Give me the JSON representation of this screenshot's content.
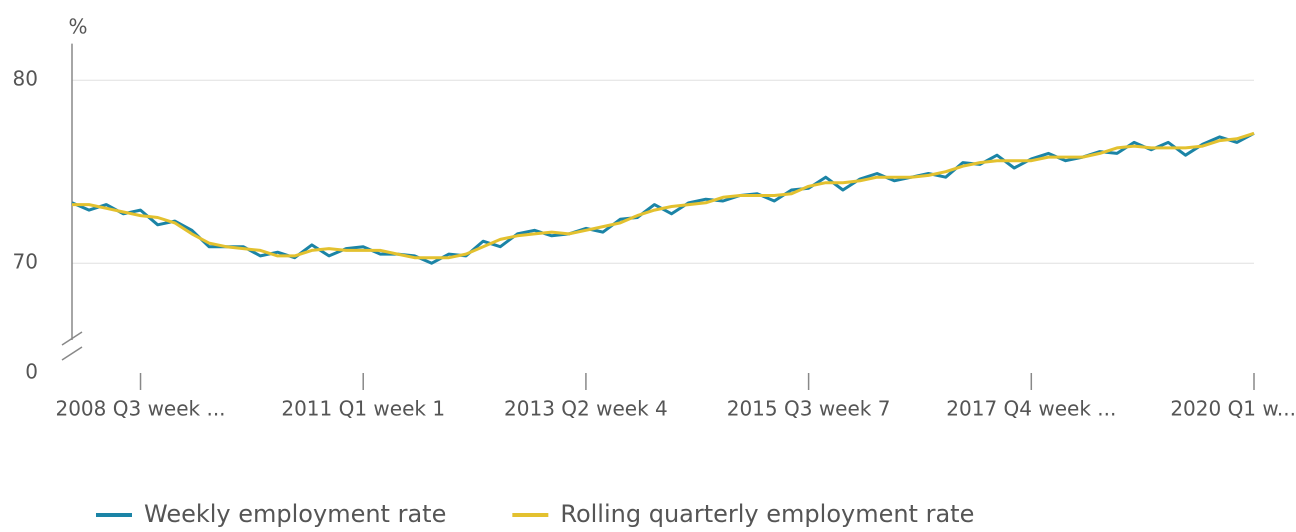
{
  "chart_data": {
    "type": "line",
    "y_unit": "%",
    "categories": [
      null,
      null,
      null,
      null,
      "2008 Q3 week ...",
      null,
      null,
      null,
      null,
      null,
      null,
      null,
      null,
      null,
      null,
      null,
      null,
      "2011 Q1 week 1",
      null,
      null,
      null,
      null,
      null,
      null,
      null,
      null,
      null,
      null,
      null,
      null,
      "2013 Q2 week 4",
      null,
      null,
      null,
      null,
      null,
      null,
      null,
      null,
      null,
      null,
      null,
      null,
      "2015 Q3 week 7",
      null,
      null,
      null,
      null,
      null,
      null,
      null,
      null,
      null,
      null,
      null,
      null,
      "2017 Q4 week ...",
      null,
      null,
      null,
      null,
      null,
      null,
      null,
      null,
      null,
      null,
      null,
      null,
      "2020 Q1 w..."
    ],
    "series": [
      {
        "name": "Weekly employment rate",
        "color": "#1b84a6",
        "values": [
          73.3,
          72.9,
          73.2,
          72.7,
          72.9,
          72.1,
          72.3,
          71.8,
          70.9,
          70.9,
          70.9,
          70.4,
          70.6,
          70.3,
          71.0,
          70.4,
          70.8,
          70.9,
          70.5,
          70.5,
          70.4,
          70.0,
          70.5,
          70.4,
          71.2,
          70.9,
          71.6,
          71.8,
          71.5,
          71.6,
          71.9,
          71.7,
          72.4,
          72.5,
          73.2,
          72.7,
          73.3,
          73.5,
          73.4,
          73.7,
          73.8,
          73.4,
          74.0,
          74.1,
          74.7,
          74.0,
          74.6,
          74.9,
          74.5,
          74.7,
          74.9,
          74.7,
          75.5,
          75.4,
          75.9,
          75.2,
          75.7,
          76.0,
          75.6,
          75.8,
          76.1,
          76.0,
          76.6,
          76.2,
          76.6,
          75.9,
          76.5,
          76.9,
          76.6,
          77.1
        ]
      },
      {
        "name": "Rolling quarterly employment rate",
        "color": "#e3c12f",
        "values": [
          73.2,
          73.2,
          73.0,
          72.8,
          72.6,
          72.5,
          72.2,
          71.6,
          71.1,
          70.9,
          70.8,
          70.7,
          70.4,
          70.4,
          70.7,
          70.8,
          70.7,
          70.7,
          70.7,
          70.5,
          70.3,
          70.3,
          70.3,
          70.5,
          70.9,
          71.3,
          71.5,
          71.6,
          71.7,
          71.6,
          71.8,
          72.0,
          72.2,
          72.6,
          72.9,
          73.1,
          73.2,
          73.3,
          73.6,
          73.7,
          73.7,
          73.7,
          73.8,
          74.2,
          74.4,
          74.4,
          74.5,
          74.7,
          74.7,
          74.7,
          74.8,
          75.0,
          75.3,
          75.5,
          75.6,
          75.6,
          75.6,
          75.8,
          75.8,
          75.8,
          76.0,
          76.3,
          76.4,
          76.3,
          76.3,
          76.3,
          76.4,
          76.7,
          76.8,
          77.1
        ]
      }
    ],
    "ylim": [
      64,
      82
    ],
    "yticks": [
      0,
      70,
      80
    ],
    "axis_break": true,
    "grid": true,
    "legend": "bottom"
  }
}
